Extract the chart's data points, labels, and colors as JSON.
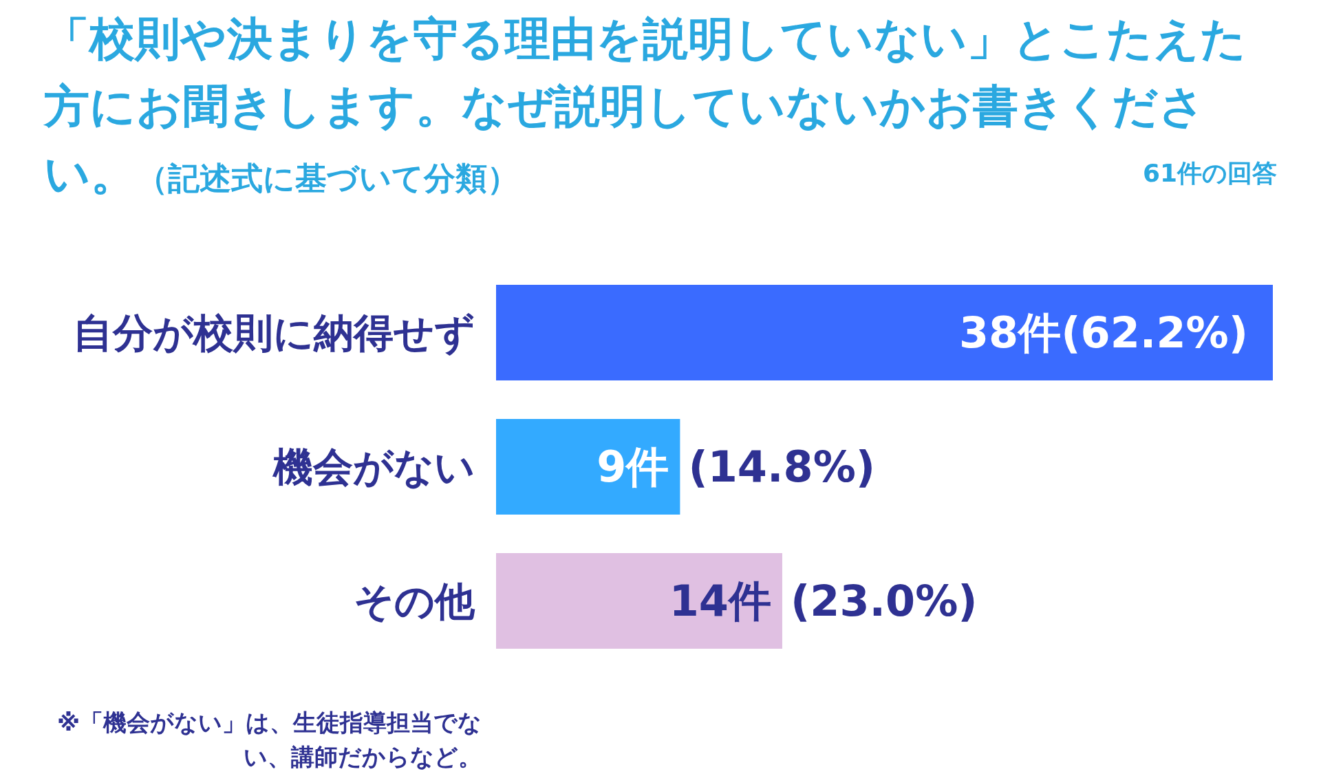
{
  "chart_data": {
    "type": "bar",
    "orientation": "horizontal",
    "title": "「校則や決まりを守る理由を説明していない」とこたえた方にお聞きします。なぜ説明していないかお書きください。",
    "subtitle": "（記述式に基づいて分類）",
    "categories": [
      "自分が校則に納得せず",
      "機会がない",
      "その他"
    ],
    "values": [
      38,
      9,
      14
    ],
    "colors": [
      "#3a6bff",
      "#33aaff",
      "#e0c0e2"
    ],
    "value_labels": [
      "38件(62.2%)",
      "9件 (14.8%)",
      "14件 (23.0%)"
    ],
    "annotations": [
      "61件の回答",
      "※「機会がない」は、生徒指導担当でない、講師だからなど。"
    ]
  }
}
